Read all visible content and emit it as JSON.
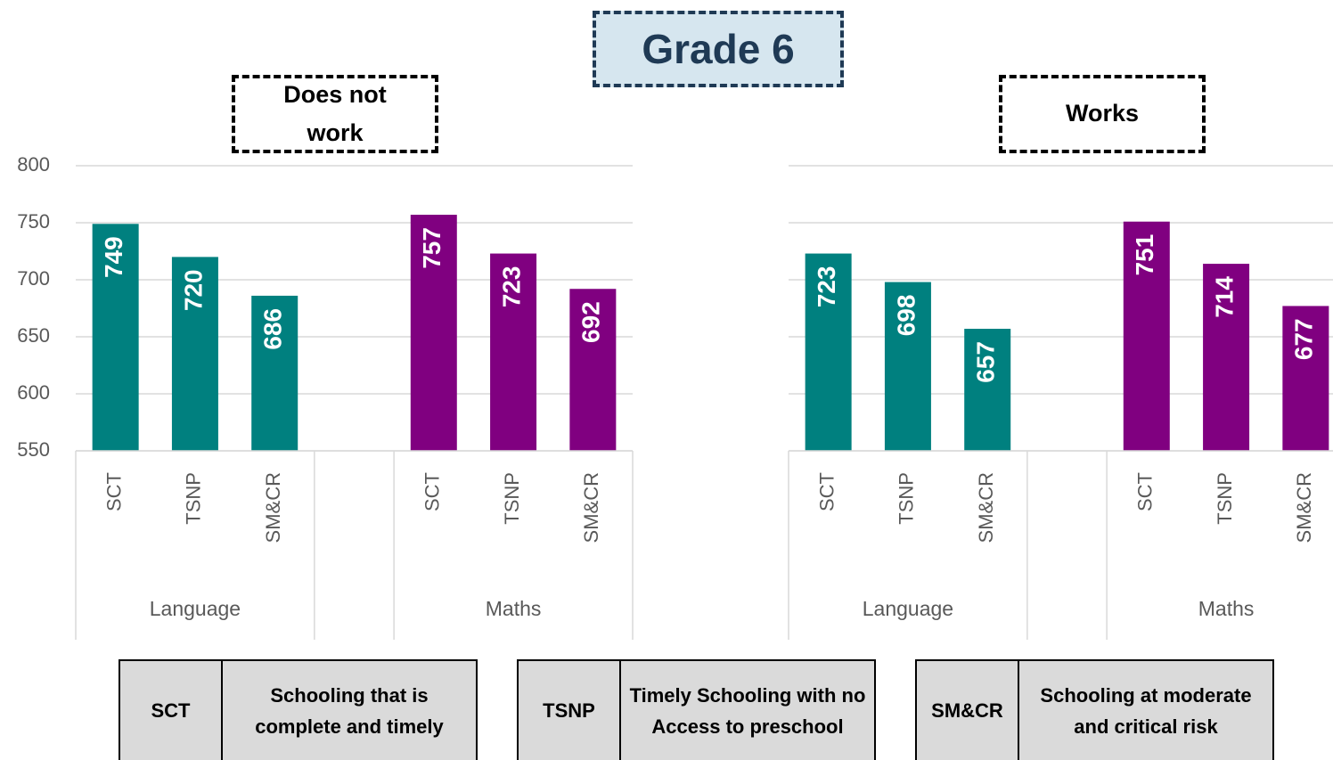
{
  "title": "Grade 6",
  "chart_data": [
    {
      "type": "bar",
      "title": "Does not work",
      "categories": [
        "SCT",
        "TSNP",
        "SM&CR"
      ],
      "series": [
        {
          "name": "Language",
          "color": "#00807f",
          "values": [
            749,
            720,
            686
          ]
        },
        {
          "name": "Maths",
          "color": "#800080",
          "values": [
            757,
            723,
            692
          ]
        }
      ],
      "ylim": [
        550,
        800
      ],
      "yticks": [
        550,
        600,
        650,
        700,
        750,
        800
      ],
      "grid": true,
      "show_ytick_labels": true
    },
    {
      "type": "bar",
      "title": "Works",
      "categories": [
        "SCT",
        "TSNP",
        "SM&CR"
      ],
      "series": [
        {
          "name": "Language",
          "color": "#00807f",
          "values": [
            723,
            698,
            657
          ]
        },
        {
          "name": "Maths",
          "color": "#800080",
          "values": [
            751,
            714,
            677
          ]
        }
      ],
      "ylim": [
        550,
        800
      ],
      "yticks": [
        550,
        600,
        650,
        700,
        750,
        800
      ],
      "grid": true,
      "show_ytick_labels": false
    }
  ],
  "legend_table": [
    {
      "abbr": "SCT",
      "definition": "Schooling that is complete and timely"
    },
    {
      "abbr": "TSNP",
      "definition": "Timely Schooling with no Access to preschool"
    },
    {
      "abbr": "SM&CR",
      "definition": "Schooling at moderate and critical risk"
    }
  ]
}
